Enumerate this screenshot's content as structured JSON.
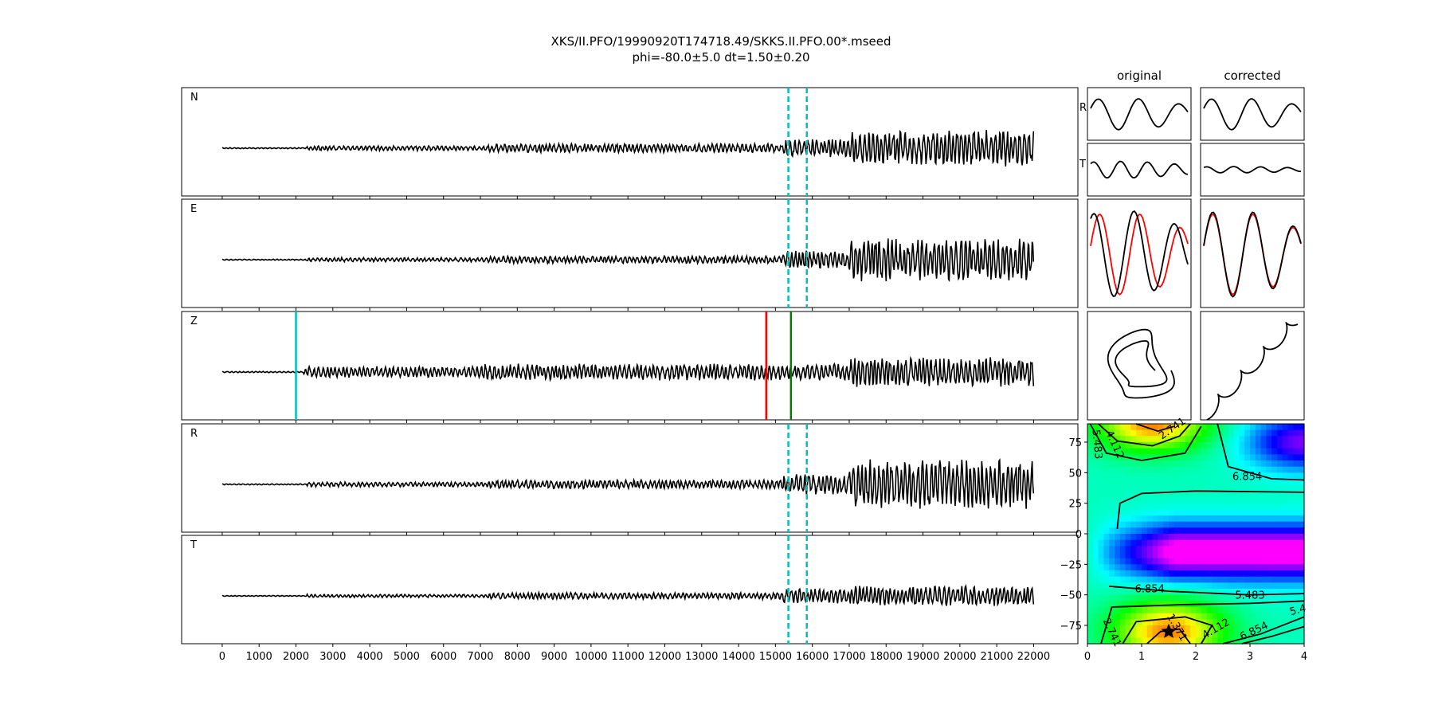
{
  "chart_data": [
    {
      "type": "line",
      "title": "XKS/II.PFO/19990920T174718.49/SKKS.II.PFO.00*.mseed",
      "subtitle": "phi=-80.0±5.0 dt=1.50±0.20",
      "xlim": [
        -1100,
        23200
      ],
      "xticks": [
        "0",
        "1000",
        "2000",
        "3000",
        "4000",
        "5000",
        "6000",
        "7000",
        "8000",
        "9000",
        "10000",
        "11000",
        "12000",
        "13000",
        "14000",
        "15000",
        "16000",
        "17000",
        "18000",
        "19000",
        "20000",
        "21000",
        "22000"
      ],
      "trace_range": [
        0,
        22000
      ],
      "panels": [
        {
          "label": "N",
          "line_color": "#000000",
          "markers": [
            {
              "x": 15350,
              "color": "#00bfbf",
              "style": "dashed"
            },
            {
              "x": 15850,
              "color": "#00bfbf",
              "style": "dashed"
            }
          ]
        },
        {
          "label": "E",
          "line_color": "#000000",
          "markers": [
            {
              "x": 15350,
              "color": "#00bfbf",
              "style": "dashed"
            },
            {
              "x": 15850,
              "color": "#00bfbf",
              "style": "dashed"
            }
          ]
        },
        {
          "label": "Z",
          "line_color": "#000000",
          "markers": [
            {
              "x": 2000,
              "color": "#00bfbf",
              "style": "solid"
            },
            {
              "x": 14750,
              "color": "#ff0000",
              "style": "solid"
            },
            {
              "x": 15420,
              "color": "#008000",
              "style": "solid"
            }
          ]
        },
        {
          "label": "R",
          "line_color": "#000000",
          "markers": [
            {
              "x": 15350,
              "color": "#00bfbf",
              "style": "dashed"
            },
            {
              "x": 15850,
              "color": "#00bfbf",
              "style": "dashed"
            }
          ]
        },
        {
          "label": "T",
          "line_color": "#000000",
          "markers": [
            {
              "x": 15350,
              "color": "#00bfbf",
              "style": "dashed"
            },
            {
              "x": 15850,
              "color": "#00bfbf",
              "style": "dashed"
            }
          ]
        }
      ]
    },
    {
      "type": "line",
      "columns": [
        "original",
        "corrected"
      ],
      "row_labels": [
        "R",
        "T"
      ],
      "overlay_colors": [
        "#ff0000",
        "#000000"
      ]
    },
    {
      "type": "heatmap",
      "xlim": [
        0,
        4
      ],
      "ylim": [
        -90,
        90
      ],
      "xticks": [
        "0",
        "1",
        "2",
        "3",
        "4"
      ],
      "yticks": [
        {
          "v": 75,
          "label": "75"
        },
        {
          "v": 50,
          "label": "50"
        },
        {
          "v": 25,
          "label": "25"
        },
        {
          "v": 0,
          "label": "0"
        },
        {
          "v": -25,
          "label": "−25"
        },
        {
          "v": -50,
          "label": "−50"
        },
        {
          "v": -75,
          "label": "−75"
        }
      ],
      "contour_levels": [
        "1.371",
        "2.741",
        "4.112",
        "5.483",
        "6.854"
      ],
      "contour_labels": [
        {
          "text": "2.741",
          "dt": 1.6,
          "phi": 84,
          "rot": -35
        },
        {
          "text": "4.112",
          "dt": 0.45,
          "phi": 72,
          "rot": 65
        },
        {
          "text": "5.483",
          "dt": 0.12,
          "phi": 73,
          "rot": 85
        },
        {
          "text": "6.854",
          "dt": 2.95,
          "phi": 44,
          "rot": 0
        },
        {
          "text": "6.854",
          "dt": 1.15,
          "phi": -48,
          "rot": 0
        },
        {
          "text": "5.483",
          "dt": 3.0,
          "phi": -53,
          "rot": 0
        },
        {
          "text": "5.4",
          "dt": 3.9,
          "phi": -65,
          "rot": -15
        },
        {
          "text": "4.112",
          "dt": 2.4,
          "phi": -80,
          "rot": -30
        },
        {
          "text": "6.854",
          "dt": 3.1,
          "phi": -82,
          "rot": -25
        },
        {
          "text": "2.741",
          "dt": 0.4,
          "phi": -82,
          "rot": 65
        },
        {
          "text": "1.371",
          "dt": 1.6,
          "phi": -78,
          "rot": 60
        }
      ],
      "best": {
        "dt": 1.5,
        "phi": -80
      }
    }
  ]
}
